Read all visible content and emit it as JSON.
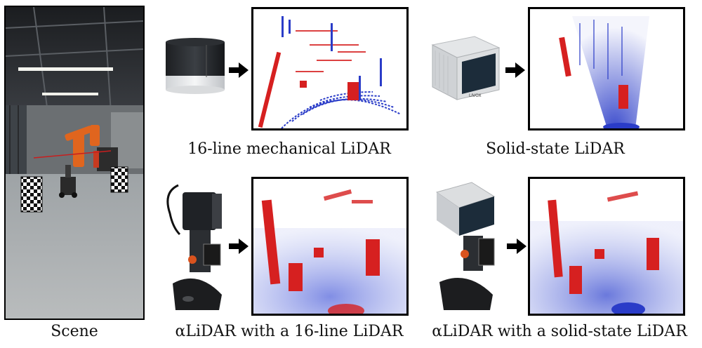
{
  "captions": {
    "scene": "Scene",
    "mech16": "16-line mechanical LiDAR",
    "solid": "Solid-state LiDAR",
    "alidar16": "αLiDAR with a 16-line LiDAR",
    "alidar_solid": "αLiDAR with a solid-state LiDAR"
  },
  "device_text": {
    "livox_brand": "LIVOX"
  },
  "colors": {
    "frame": "#000000",
    "point_red": "#d62020",
    "point_blue": "#2a3cc8",
    "robot_orange": "#e0651e"
  },
  "icons": [
    "arrow-right-icon"
  ]
}
